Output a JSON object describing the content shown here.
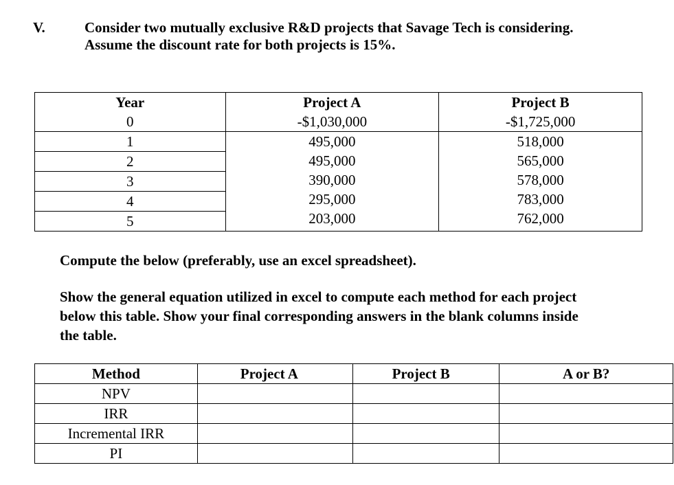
{
  "question": {
    "number": "V.",
    "lines": [
      "Consider two mutually exclusive R&D projects that Savage Tech is considering.",
      "Assume the discount rate for both projects is 15%."
    ]
  },
  "cashflow_table": {
    "headers": [
      "Year",
      "Project A",
      "Project B"
    ],
    "rows": [
      {
        "year": "0",
        "a": "-$1,030,000",
        "b": "-$1,725,000"
      },
      {
        "year": "1",
        "a": "495,000",
        "b": "518,000"
      },
      {
        "year": "2",
        "a": "495,000",
        "b": "565,000"
      },
      {
        "year": "3",
        "a": "390,000",
        "b": "578,000"
      },
      {
        "year": "4",
        "a": "295,000",
        "b": "783,000"
      },
      {
        "year": "5",
        "a": "203,000",
        "b": "762,000"
      }
    ]
  },
  "instructions": {
    "compute": "Compute the below (preferably, use an excel spreadsheet).",
    "show_lines": [
      "Show the general equation utilized in excel to compute each method for each project",
      "below this table. Show your final corresponding answers in the blank columns inside",
      "the table."
    ]
  },
  "answer_table": {
    "headers": [
      "Method",
      "Project A",
      "Project B",
      "A or B?"
    ],
    "rows": [
      "NPV",
      "IRR",
      "Incremental IRR",
      "PI"
    ]
  }
}
